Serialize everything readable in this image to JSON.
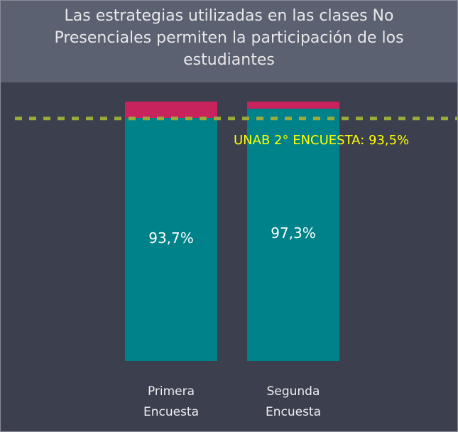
{
  "chart_data": {
    "type": "stacked_bar",
    "title": "Las estrategias utilizadas en las clases No Presenciales permiten la participación de los estudiantes",
    "categories": [
      "Primera Encuesta",
      "Segunda Encuesta"
    ],
    "series": [
      {
        "color": "#00828a",
        "values": [
          93.7,
          97.3
        ],
        "value_labels": [
          "93,7%",
          "97,3%"
        ]
      },
      {
        "color": "#c8235c",
        "values": [
          6.3,
          2.7
        ]
      }
    ],
    "ylim": [
      0,
      100
    ],
    "reference_line": {
      "value": 93.5,
      "label": "UNAB 2° ENCUESTA: 93,5%",
      "color": "#9bab3a",
      "label_color": "#ffff00"
    }
  }
}
